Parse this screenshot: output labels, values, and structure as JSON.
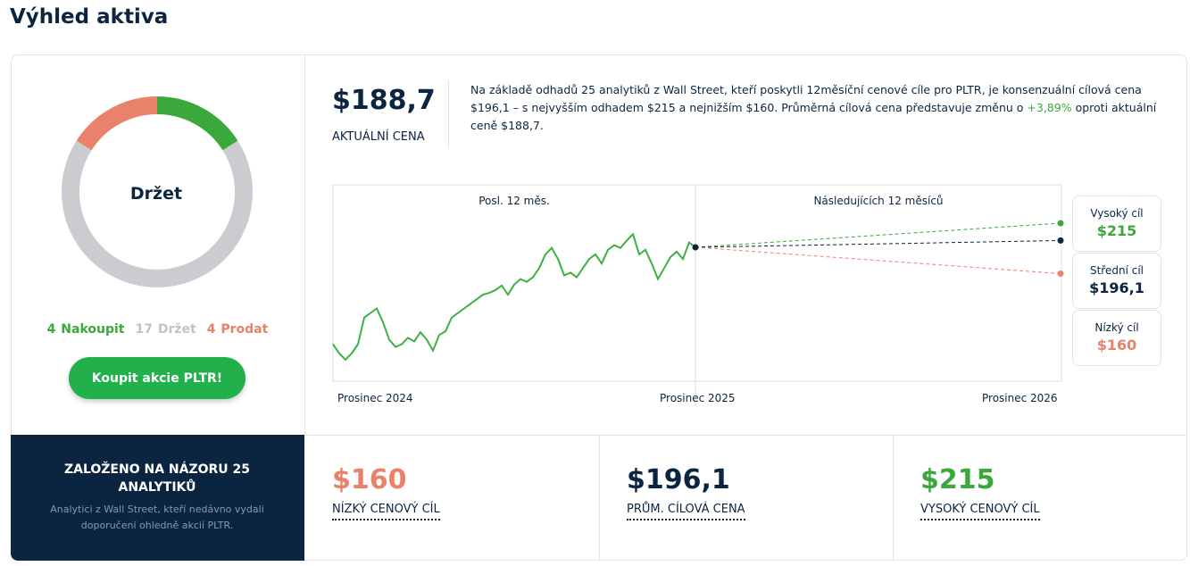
{
  "header": {
    "title": "Výhled aktiva"
  },
  "ratings": {
    "consensus": "Držet",
    "items": [
      {
        "count": 4,
        "label": "Nakoupit",
        "color": "#3aa83a"
      },
      {
        "count": 17,
        "label": "Držet",
        "color": "#cccbd0"
      },
      {
        "count": 4,
        "label": "Prodat",
        "color": "#e8826a"
      }
    ],
    "button": "Koupit akcie PLTR!"
  },
  "price": {
    "value": "$188,7",
    "label": "AKTUÁLNÍ CENA"
  },
  "description": [
    "Na základě odhadů 25 analytiků z Wall Street, kteří poskytli 12měsíční cenové cíle pro PLTR, je konsenzuální cílová cena $196,1 – s nejvyšším odhadem $215 a nejnižším $160. Průměrná cílová cena představuje změnu o ",
    "+3,89%",
    " oproti aktuální ceně $188,7."
  ],
  "price_chart": {
    "past_label": "Posl. 12 měs.",
    "future_label": "Následujících 12 měsíců",
    "x_labels": [
      "Prosinec 2024",
      "Prosinec 2025",
      "Prosinec 2026"
    ],
    "color": "#3cb043",
    "history": [
      83,
      73,
      66,
      73,
      83,
      112,
      117,
      122,
      107,
      88,
      80,
      83,
      90,
      86,
      96,
      88,
      76,
      93,
      97,
      112,
      117,
      122,
      127,
      132,
      137,
      139,
      142,
      147,
      137,
      148,
      154,
      151,
      156,
      166,
      181,
      188,
      176,
      158,
      161,
      156,
      166,
      176,
      181,
      171,
      186,
      191,
      188,
      196,
      203,
      181,
      186,
      171,
      154,
      166,
      178,
      184,
      176,
      194,
      188.7
    ]
  },
  "forecast": {
    "high": {
      "name": "Vysoký cíl",
      "value": 215,
      "label": "$215",
      "color": "#3aa83a",
      "card": "VYSOKÝ CENOVÝ CÍL"
    },
    "mid": {
      "name": "Střední cíl",
      "value": 196.1,
      "label": "$196,1",
      "color": "#0b2540",
      "card": "PRŮM. CÍLOVÁ CENA"
    },
    "low": {
      "name": "Nízký cíl",
      "value": 160,
      "label": "$160",
      "color": "#e8826a",
      "card": "NÍZKÝ CENOVÝ CÍL"
    }
  },
  "basis": {
    "title": "ZALOŽENO NA NÁZORU 25 ANALYTIKŮ",
    "text": "Analytici z Wall Street, kteří nedávno vydali doporučení ohledně akcií PLTR."
  }
}
